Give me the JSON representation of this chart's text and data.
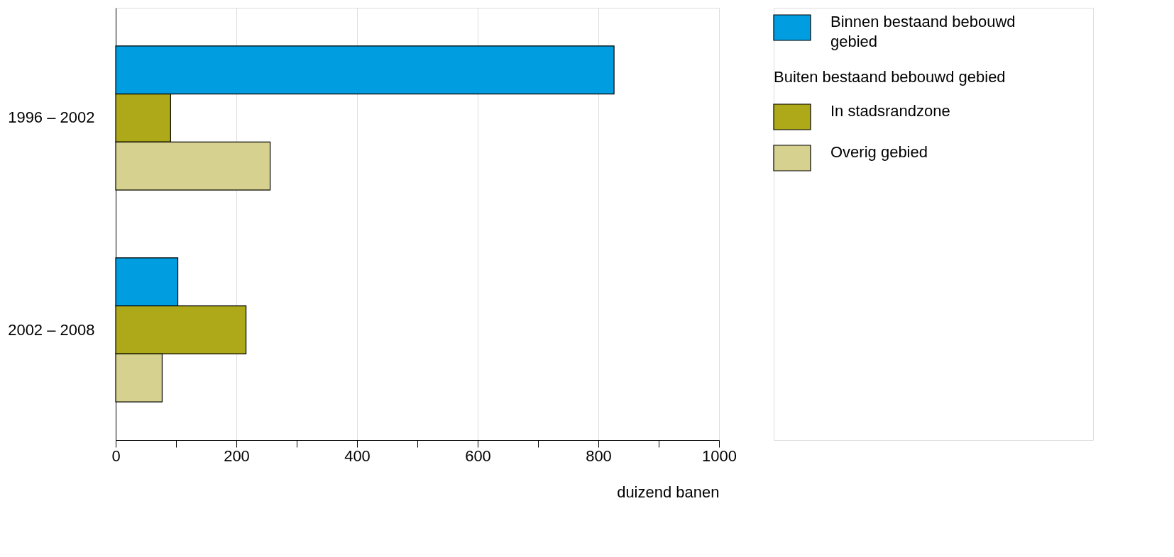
{
  "chart_data": {
    "type": "bar",
    "orientation": "horizontal",
    "categories": [
      "1996 – 2002",
      "2002 – 2008"
    ],
    "series": [
      {
        "name": "Binnen bestaand bebouwd gebied",
        "color": "#009ee0",
        "values": [
          826,
          103
        ]
      },
      {
        "name": "In stadsrandzone",
        "color": "#aea918",
        "values": [
          91,
          216
        ]
      },
      {
        "name": "Overig gebied",
        "color": "#d7d18f",
        "values": [
          256,
          77
        ]
      }
    ],
    "xlabel": "duizend banen",
    "xlim": [
      0,
      1000
    ],
    "xticks": [
      0,
      {
        "value": 100,
        "label": null
      },
      200,
      {
        "value": 300,
        "label": null
      },
      400,
      {
        "value": 500,
        "label": null
      },
      600,
      {
        "value": 700,
        "label": null
      },
      800,
      {
        "value": 900,
        "label": null
      },
      1000
    ],
    "grid": "x",
    "legend": "top right",
    "annotations": [
      "Buiten bestaand bebouwd gebied"
    ]
  }
}
